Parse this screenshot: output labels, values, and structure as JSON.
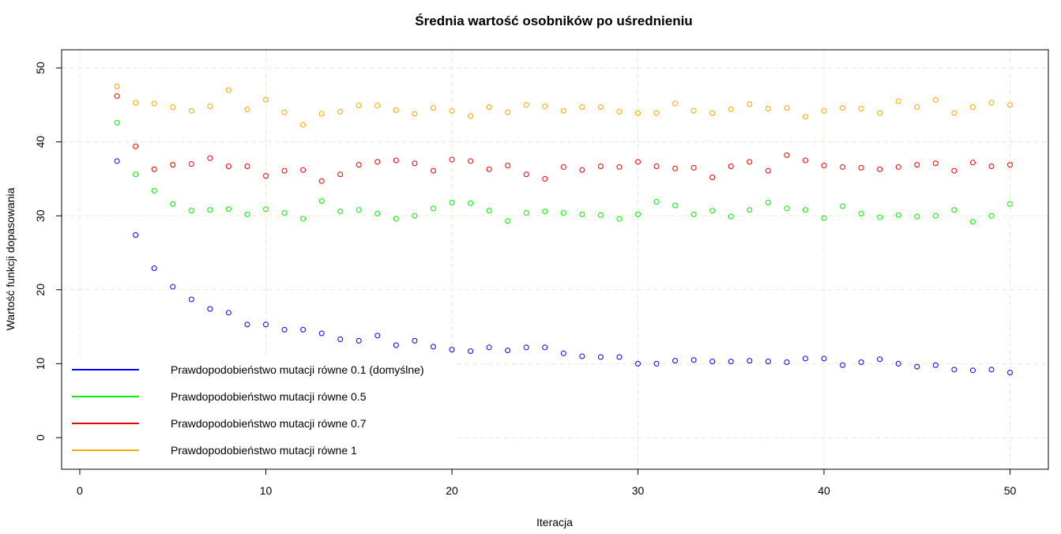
{
  "chart_data": {
    "type": "scatter",
    "title": "Średnia wartość osobników po uśrednieniu",
    "xlabel": "Iteracja",
    "ylabel": "Wartość funkcji dopasowania",
    "xlim": [
      0,
      50
    ],
    "ylim": [
      0,
      50
    ],
    "xticks": [
      "0",
      "10",
      "20",
      "30",
      "40",
      "50"
    ],
    "yticks": [
      "0",
      "10",
      "20",
      "30",
      "40",
      "50"
    ],
    "grid": true,
    "legend_position": "bottom-left",
    "x": [
      2,
      3,
      4,
      5,
      6,
      7,
      8,
      9,
      10,
      11,
      12,
      13,
      14,
      15,
      16,
      17,
      18,
      19,
      20,
      21,
      22,
      23,
      24,
      25,
      26,
      27,
      28,
      29,
      30,
      31,
      32,
      33,
      34,
      35,
      36,
      37,
      38,
      39,
      40,
      41,
      42,
      43,
      44,
      45,
      46,
      47,
      48,
      49,
      50
    ],
    "series": [
      {
        "name": "Prawdopodobieństwo mutacji równe 0.1 (domyślne)",
        "color": "#0000ff",
        "values": [
          37.4,
          27.4,
          22.9,
          20.4,
          18.7,
          17.4,
          16.9,
          15.3,
          15.3,
          14.6,
          14.6,
          14.1,
          13.3,
          13.1,
          13.8,
          12.5,
          13.1,
          12.3,
          11.9,
          11.7,
          12.2,
          11.8,
          12.2,
          12.2,
          11.4,
          11.0,
          10.9,
          10.9,
          10.0,
          10.0,
          10.4,
          10.5,
          10.3,
          10.3,
          10.4,
          10.3,
          10.2,
          10.7,
          10.7,
          9.8,
          10.2,
          10.6,
          10.0,
          9.6,
          9.8,
          9.2,
          9.1,
          9.2,
          8.8
        ]
      },
      {
        "name": "Prawdopodobieństwo mutacji równe 0.5",
        "color": "#00ee00",
        "values": [
          42.6,
          35.6,
          33.4,
          31.6,
          30.7,
          30.8,
          30.9,
          30.2,
          30.9,
          30.4,
          29.6,
          32.0,
          30.6,
          30.8,
          30.3,
          29.6,
          30.0,
          31.0,
          31.8,
          31.7,
          30.7,
          29.3,
          30.4,
          30.6,
          30.4,
          30.2,
          30.1,
          29.6,
          30.2,
          31.9,
          31.4,
          30.2,
          30.7,
          29.9,
          30.8,
          31.8,
          31.0,
          30.8,
          29.7,
          31.3,
          30.3,
          29.8,
          30.1,
          29.9,
          30.0,
          30.8,
          29.2,
          30.0,
          31.6
        ]
      },
      {
        "name": "Prawdopodobieństwo mutacji równe 0.7",
        "color": "#ee0000",
        "values": [
          46.2,
          39.4,
          36.3,
          36.9,
          37.0,
          37.8,
          36.7,
          36.7,
          35.4,
          36.1,
          36.2,
          34.7,
          35.6,
          36.9,
          37.3,
          37.5,
          37.1,
          36.1,
          37.6,
          37.4,
          36.3,
          36.8,
          35.6,
          35.0,
          36.6,
          36.2,
          36.7,
          36.6,
          37.3,
          36.7,
          36.4,
          36.5,
          35.2,
          36.7,
          37.3,
          36.1,
          38.2,
          37.5,
          36.8,
          36.6,
          36.5,
          36.3,
          36.6,
          36.9,
          37.1,
          36.1,
          37.2,
          36.7,
          36.9
        ]
      },
      {
        "name": "Prawdopodobieństwo mutacji równe 1",
        "color": "#ffa500",
        "values": [
          47.5,
          45.3,
          45.2,
          44.7,
          44.2,
          44.8,
          47.0,
          44.4,
          45.7,
          44.0,
          42.3,
          43.8,
          44.1,
          44.9,
          44.9,
          44.3,
          43.8,
          44.6,
          44.2,
          43.5,
          44.7,
          44.0,
          45.0,
          44.8,
          44.2,
          44.7,
          44.7,
          44.1,
          43.9,
          43.9,
          45.2,
          44.2,
          43.9,
          44.4,
          45.1,
          44.5,
          44.6,
          43.4,
          44.2,
          44.6,
          44.5,
          43.9,
          45.5,
          44.7,
          45.7,
          43.9,
          44.7,
          45.3,
          45.0
        ]
      }
    ]
  }
}
